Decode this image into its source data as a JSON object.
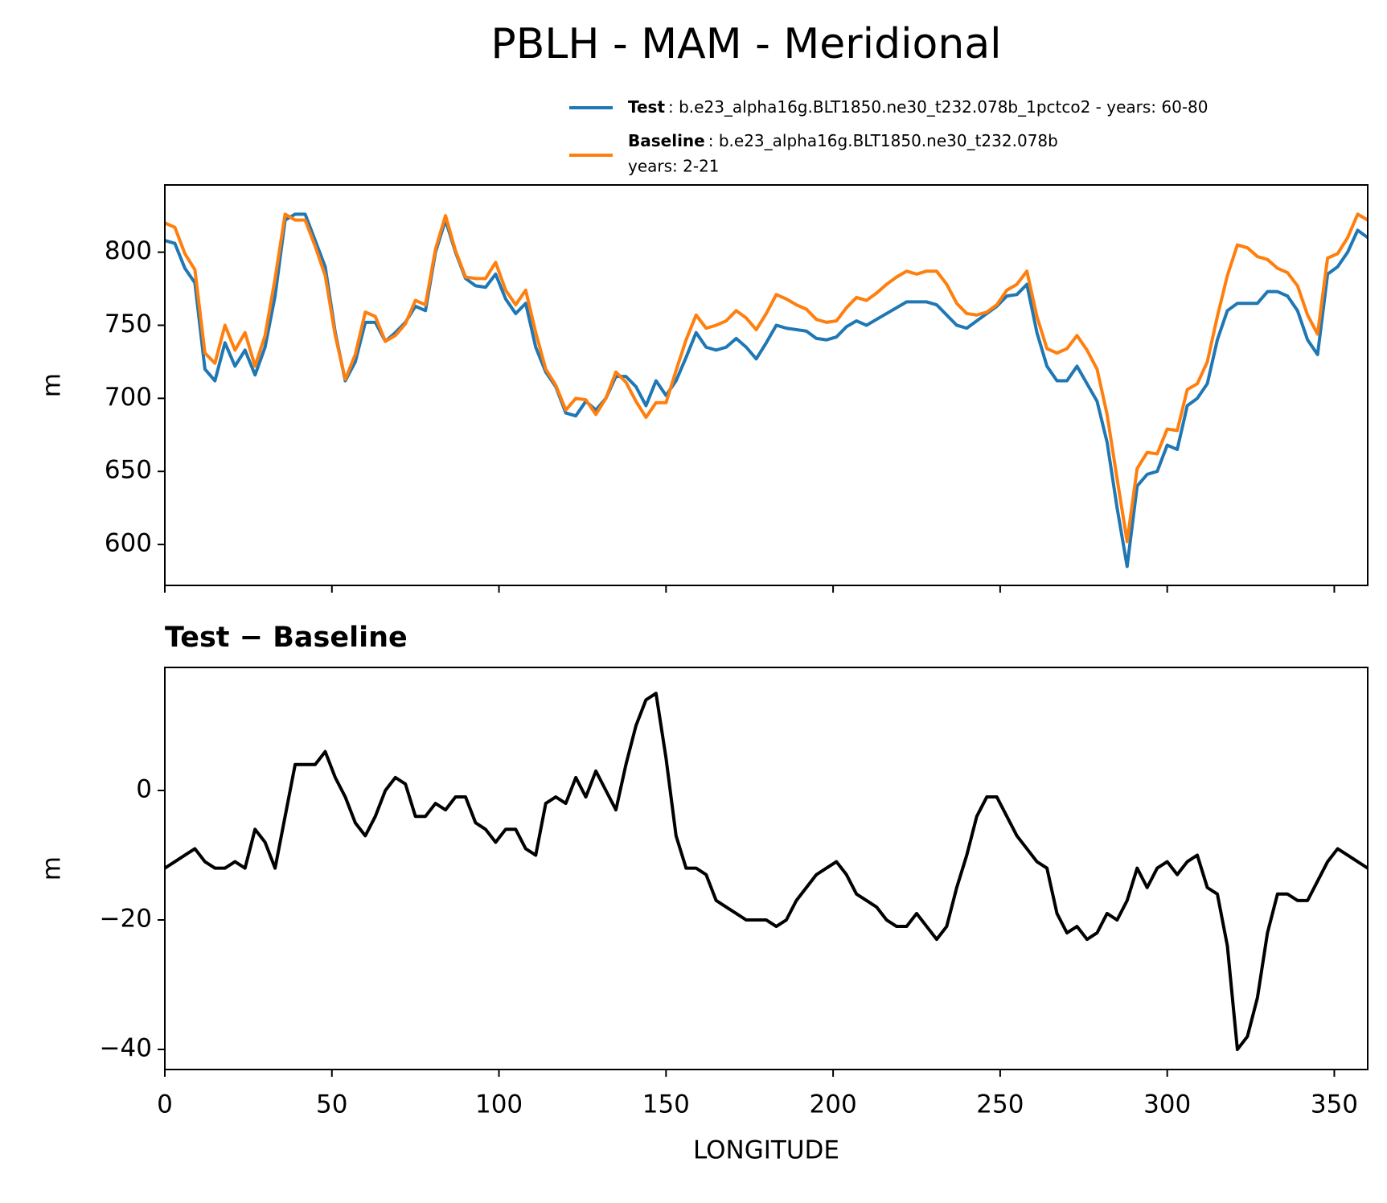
{
  "chart_data": [
    {
      "type": "line",
      "title": "PBLH - MAM - Meridional",
      "ylabel": "m",
      "x": [
        0,
        3,
        6,
        9,
        12,
        15,
        18,
        21,
        24,
        27,
        30,
        33,
        36,
        39,
        42,
        45,
        48,
        51,
        54,
        57,
        60,
        63,
        66,
        69,
        72,
        75,
        78,
        81,
        84,
        87,
        90,
        93,
        96,
        99,
        102,
        105,
        108,
        111,
        114,
        117,
        120,
        123,
        126,
        129,
        132,
        135,
        138,
        141,
        144,
        147,
        150,
        153,
        156,
        159,
        162,
        165,
        168,
        171,
        174,
        177,
        180,
        183,
        186,
        189,
        192,
        195,
        198,
        201,
        204,
        207,
        210,
        213,
        216,
        219,
        222,
        225,
        228,
        231,
        234,
        237,
        240,
        243,
        246,
        249,
        252,
        255,
        258,
        261,
        264,
        267,
        270,
        273,
        276,
        279,
        282,
        285,
        288,
        291,
        294,
        297,
        300,
        303,
        306,
        309,
        312,
        315,
        318,
        321,
        324,
        327,
        330,
        333,
        336,
        339,
        342,
        345,
        348,
        351,
        354,
        357,
        360
      ],
      "series": [
        {
          "name": "Test",
          "description": [
            ": b.e23_alpha16g.BLT1850.ne30_t232.078b_1pctco2 - years: 60-80"
          ],
          "color": "#1f77b4",
          "values": [
            808,
            806,
            789,
            779,
            720,
            712,
            738,
            722,
            733,
            716,
            735,
            770,
            822,
            826,
            826,
            808,
            790,
            745,
            712,
            725,
            752,
            752,
            739,
            745,
            752,
            763,
            760,
            800,
            822,
            800,
            782,
            777,
            776,
            785,
            768,
            758,
            765,
            735,
            718,
            708,
            690,
            688,
            698,
            692,
            700,
            715,
            715,
            708,
            695,
            712,
            702,
            712,
            728,
            745,
            735,
            733,
            735,
            741,
            735,
            727,
            738,
            750,
            748,
            747,
            746,
            741,
            740,
            742,
            749,
            753,
            750,
            754,
            758,
            762,
            766,
            766,
            766,
            764,
            757,
            750,
            748,
            753,
            758,
            763,
            770,
            771,
            778,
            745,
            722,
            712,
            712,
            722,
            710,
            698,
            670,
            625,
            585,
            640,
            648,
            650,
            668,
            665,
            695,
            700,
            710,
            740,
            760,
            765,
            765,
            765,
            773,
            773,
            770,
            760,
            740,
            730,
            785,
            790,
            800,
            815,
            810
          ]
        },
        {
          "name": "Baseline",
          "description": [
            ": b.e23_alpha16g.BLT1850.ne30_t232.078b",
            "years: 2-21"
          ],
          "color": "#ff7f0e",
          "values": [
            820,
            817,
            799,
            788,
            731,
            724,
            750,
            733,
            745,
            722,
            743,
            782,
            826,
            822,
            822,
            804,
            784,
            743,
            713,
            730,
            759,
            756,
            739,
            743,
            751,
            767,
            764,
            802,
            825,
            801,
            783,
            782,
            782,
            793,
            774,
            764,
            774,
            745,
            720,
            709,
            692,
            700,
            699,
            689,
            700,
            718,
            711,
            698,
            687,
            697,
            697,
            719,
            740,
            757,
            748,
            750,
            753,
            760,
            755,
            747,
            758,
            771,
            768,
            764,
            761,
            754,
            752,
            753,
            762,
            769,
            767,
            772,
            778,
            783,
            787,
            785,
            787,
            787,
            778,
            765,
            758,
            757,
            759,
            764,
            774,
            778,
            787,
            756,
            734,
            731,
            734,
            743,
            733,
            720,
            689,
            645,
            602,
            652,
            663,
            662,
            679,
            678,
            706,
            710,
            725,
            756,
            784,
            805,
            803,
            797,
            795,
            789,
            786,
            777,
            757,
            744,
            796,
            799,
            810,
            826,
            822
          ]
        }
      ],
      "xlim": [
        0,
        360
      ],
      "xticks": [
        0,
        50,
        100,
        150,
        200,
        250,
        300,
        350
      ],
      "ylim": [
        572,
        846
      ],
      "yticks": [
        600,
        650,
        700,
        750,
        800
      ]
    },
    {
      "type": "line",
      "title": "Test − Baseline",
      "ylabel": "m",
      "xlabel": "LONGITUDE",
      "x": [
        0,
        3,
        6,
        9,
        12,
        15,
        18,
        21,
        24,
        27,
        30,
        33,
        36,
        39,
        42,
        45,
        48,
        51,
        54,
        57,
        60,
        63,
        66,
        69,
        72,
        75,
        78,
        81,
        84,
        87,
        90,
        93,
        96,
        99,
        102,
        105,
        108,
        111,
        114,
        117,
        120,
        123,
        126,
        129,
        132,
        135,
        138,
        141,
        144,
        147,
        150,
        153,
        156,
        159,
        162,
        165,
        168,
        171,
        174,
        177,
        180,
        183,
        186,
        189,
        192,
        195,
        198,
        201,
        204,
        207,
        210,
        213,
        216,
        219,
        222,
        225,
        228,
        231,
        234,
        237,
        240,
        243,
        246,
        249,
        252,
        255,
        258,
        261,
        264,
        267,
        270,
        273,
        276,
        279,
        282,
        285,
        288,
        291,
        294,
        297,
        300,
        303,
        306,
        309,
        312,
        315,
        318,
        321,
        324,
        327,
        330,
        333,
        336,
        339,
        342,
        345,
        348,
        351,
        354,
        357,
        360
      ],
      "series": [
        {
          "color": "#000000",
          "values": [
            -12,
            -11,
            -10,
            -9,
            -11,
            -12,
            -12,
            -11,
            -12,
            -6,
            -8,
            -12,
            -4,
            4,
            4,
            4,
            6,
            2,
            -1,
            -5,
            -7,
            -4,
            0,
            2,
            1,
            -4,
            -4,
            -2,
            -3,
            -1,
            -1,
            -5,
            -6,
            -8,
            -6,
            -6,
            -9,
            -10,
            -2,
            -1,
            -2,
            2,
            -1,
            3,
            0,
            -3,
            4,
            10,
            14,
            15,
            5,
            -7,
            -12,
            -12,
            -13,
            -17,
            -18,
            -19,
            -20,
            -20,
            -20,
            -21,
            -20,
            -17,
            -15,
            -13,
            -12,
            -11,
            -13,
            -16,
            -17,
            -18,
            -20,
            -21,
            -21,
            -19,
            -21,
            -23,
            -21,
            -15,
            -10,
            -4,
            -1,
            -1,
            -4,
            -7,
            -9,
            -11,
            -12,
            -19,
            -22,
            -21,
            -23,
            -22,
            -19,
            -20,
            -17,
            -12,
            -15,
            -12,
            -11,
            -13,
            -11,
            -10,
            -15,
            -16,
            -24,
            -40,
            -38,
            -32,
            -22,
            -16,
            -16,
            -17,
            -17,
            -14,
            -11,
            -9,
            -10,
            -11,
            -12
          ]
        }
      ],
      "xlim": [
        0,
        360
      ],
      "xticks": [
        0,
        50,
        100,
        150,
        200,
        250,
        300,
        350
      ],
      "ylim": [
        -43.1,
        19
      ],
      "yticks": [
        {
          "value": -40,
          "label": "−40"
        },
        {
          "value": -20,
          "label": "−20"
        },
        0
      ]
    }
  ]
}
